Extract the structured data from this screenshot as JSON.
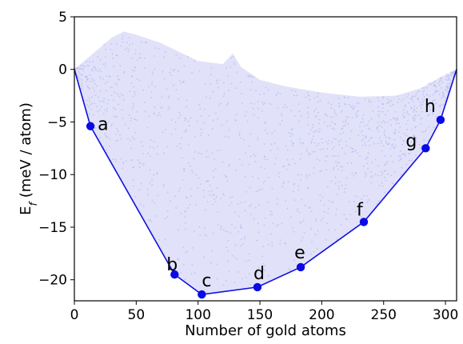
{
  "chart_data": {
    "type": "scatter",
    "title": "",
    "xlabel": "Number of gold atoms",
    "ylabel_main": "E",
    "ylabel_sub": "f",
    "ylabel_rest": " (meV / atom)",
    "xlim": [
      0,
      309
    ],
    "ylim": [
      -22,
      5
    ],
    "x_ticks": [
      0,
      50,
      100,
      150,
      200,
      250,
      300
    ],
    "y_ticks": [
      5,
      0,
      -5,
      -10,
      -15,
      -20
    ],
    "grid": false,
    "colors": {
      "hull": "#1010e0",
      "points": "#0a0ae6",
      "cloud": "#c8c8f4"
    },
    "hull": {
      "x": [
        0,
        13,
        81,
        103,
        148,
        183,
        234,
        284,
        296,
        309
      ],
      "y": [
        0,
        -5.4,
        -19.5,
        -21.4,
        -20.7,
        -18.8,
        -14.5,
        -7.5,
        -4.8,
        0
      ]
    },
    "labeled_points": [
      {
        "label": "a",
        "x": 13,
        "y": -5.4
      },
      {
        "label": "b",
        "x": 81,
        "y": -19.5
      },
      {
        "label": "c",
        "x": 103,
        "y": -21.4
      },
      {
        "label": "d",
        "x": 148,
        "y": -20.7
      },
      {
        "label": "e",
        "x": 183,
        "y": -18.8
      },
      {
        "label": "f",
        "x": 234,
        "y": -14.5
      },
      {
        "label": "g",
        "x": 284,
        "y": -7.5
      },
      {
        "label": "h",
        "x": 296,
        "y": -4.8
      }
    ],
    "cloud_upper": {
      "x": [
        0,
        20,
        30,
        40,
        50,
        70,
        100,
        120,
        128,
        135,
        150,
        170,
        200,
        230,
        260,
        280,
        295,
        309
      ],
      "y": [
        0,
        2.0,
        3.0,
        3.6,
        3.3,
        2.5,
        0.8,
        0.5,
        1.5,
        0.2,
        -1.0,
        -1.6,
        -2.2,
        -2.6,
        -2.5,
        -1.8,
        -0.8,
        0
      ]
    }
  }
}
